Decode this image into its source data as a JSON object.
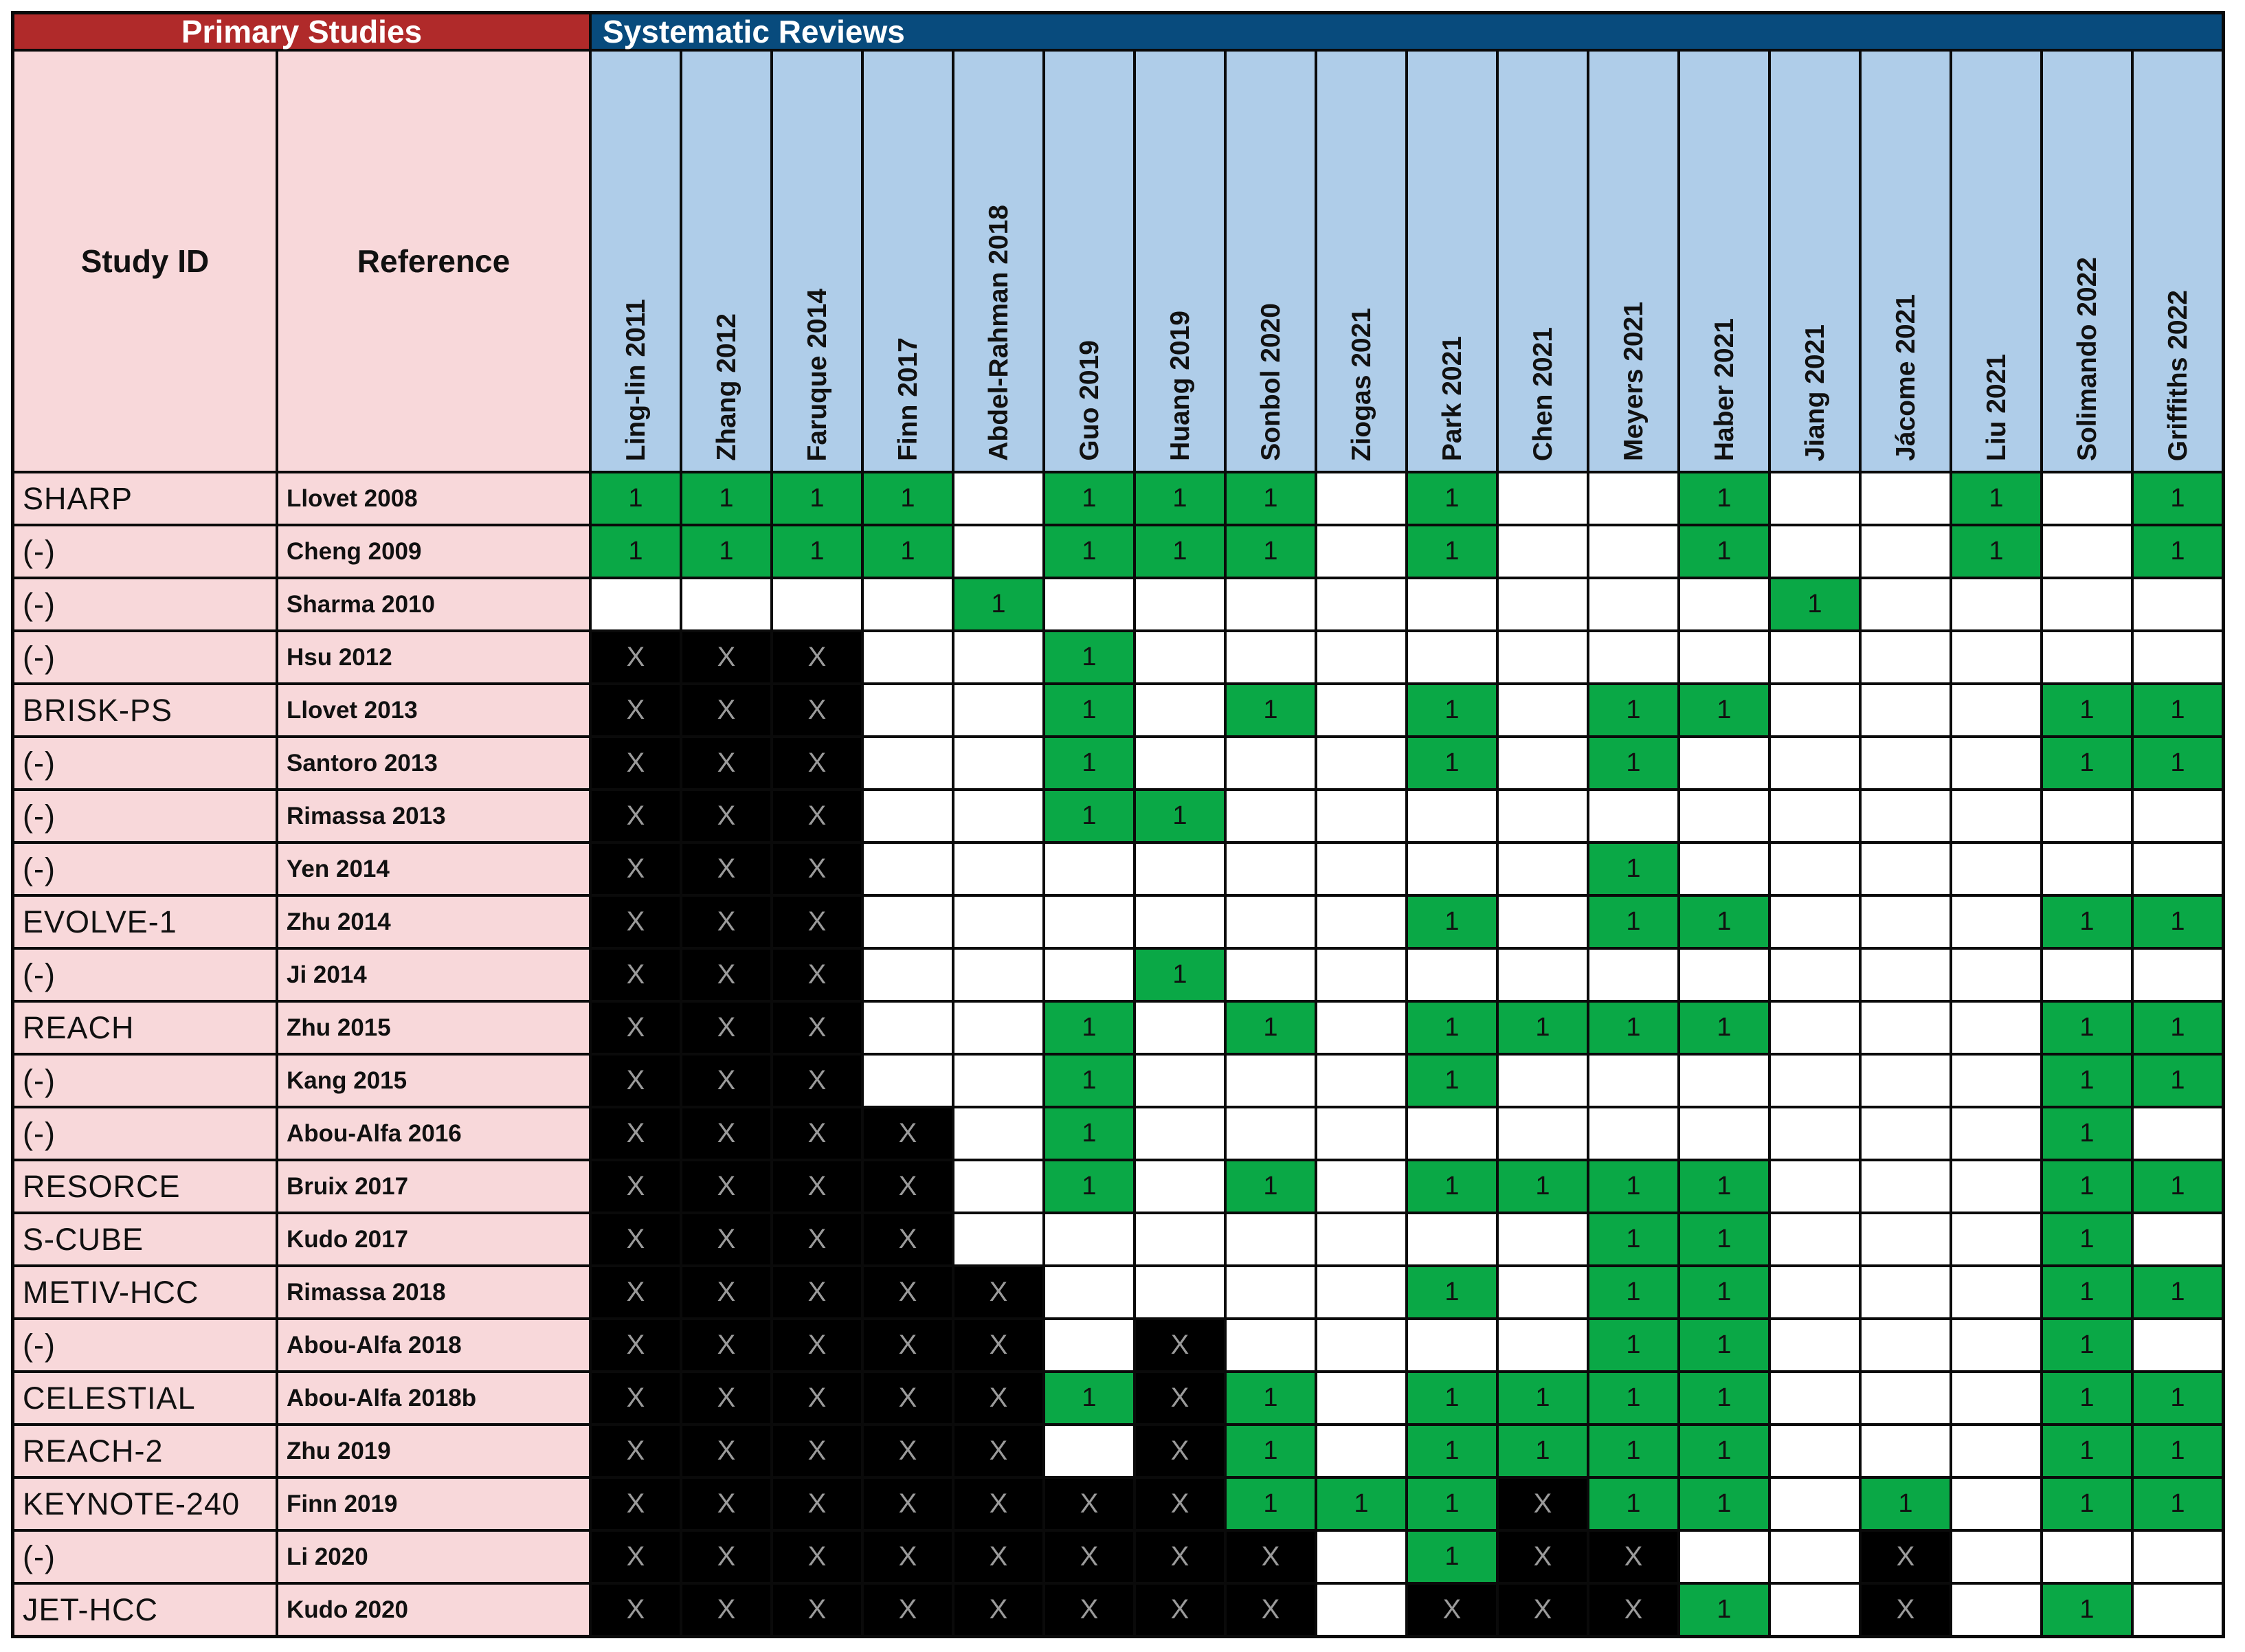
{
  "header": {
    "primary_studies_label": "Primary Studies",
    "systematic_reviews_label": "Systematic Reviews",
    "study_id_label": "Study ID",
    "reference_label": "Reference"
  },
  "reviews": [
    "Ling-lin 2011",
    "Zhang 2012",
    "Faruque 2014",
    "Finn 2017",
    "Abdel-Rahman 2018",
    "Guo 2019",
    "Huang 2019",
    "Sonbol 2020",
    "Ziogas 2021",
    "Park 2021",
    "Chen 2021",
    "Meyers 2021",
    "Haber 2021",
    "Jiang 2021",
    "Jácome 2021",
    "Liu 2021",
    "Solimando 2022",
    "Griffiths 2022"
  ],
  "rows": [
    {
      "study_id": "SHARP",
      "reference": "Llovet 2008",
      "cells": [
        "1",
        "1",
        "1",
        "1",
        "",
        "1",
        "1",
        "1",
        "",
        "1",
        "",
        "",
        "1",
        "",
        "",
        "1",
        "",
        "1"
      ]
    },
    {
      "study_id": "(-)",
      "reference": "Cheng 2009",
      "cells": [
        "1",
        "1",
        "1",
        "1",
        "",
        "1",
        "1",
        "1",
        "",
        "1",
        "",
        "",
        "1",
        "",
        "",
        "1",
        "",
        "1"
      ]
    },
    {
      "study_id": "(-)",
      "reference": "Sharma 2010",
      "cells": [
        "",
        "",
        "",
        "",
        "1",
        "",
        "",
        "",
        "",
        "",
        "",
        "",
        "",
        "1",
        "",
        "",
        "",
        ""
      ]
    },
    {
      "study_id": "(-)",
      "reference": "Hsu 2012",
      "cells": [
        "X",
        "X",
        "X",
        "",
        "",
        "1",
        "",
        "",
        "",
        "",
        "",
        "",
        "",
        "",
        "",
        "",
        "",
        ""
      ]
    },
    {
      "study_id": "BRISK-PS",
      "reference": "Llovet 2013",
      "cells": [
        "X",
        "X",
        "X",
        "",
        "",
        "1",
        "",
        "1",
        "",
        "1",
        "",
        "1",
        "1",
        "",
        "",
        "",
        "1",
        "1"
      ]
    },
    {
      "study_id": "(-)",
      "reference": "Santoro 2013",
      "cells": [
        "X",
        "X",
        "X",
        "",
        "",
        "1",
        "",
        "",
        "",
        "1",
        "",
        "1",
        "",
        "",
        "",
        "",
        "1",
        "1"
      ]
    },
    {
      "study_id": "(-)",
      "reference": "Rimassa 2013",
      "cells": [
        "X",
        "X",
        "X",
        "",
        "",
        "1",
        "1",
        "",
        "",
        "",
        "",
        "",
        "",
        "",
        "",
        "",
        "",
        ""
      ]
    },
    {
      "study_id": "(-)",
      "reference": "Yen 2014",
      "cells": [
        "X",
        "X",
        "X",
        "",
        "",
        "",
        "",
        "",
        "",
        "",
        "",
        "1",
        "",
        "",
        "",
        "",
        "",
        ""
      ]
    },
    {
      "study_id": "EVOLVE-1",
      "reference": "Zhu 2014",
      "cells": [
        "X",
        "X",
        "X",
        "",
        "",
        "",
        "",
        "",
        "",
        "1",
        "",
        "1",
        "1",
        "",
        "",
        "",
        "1",
        "1"
      ]
    },
    {
      "study_id": "(-)",
      "reference": "Ji 2014",
      "cells": [
        "X",
        "X",
        "X",
        "",
        "",
        "",
        "1",
        "",
        "",
        "",
        "",
        "",
        "",
        "",
        "",
        "",
        "",
        ""
      ]
    },
    {
      "study_id": "REACH",
      "reference": "Zhu 2015",
      "cells": [
        "X",
        "X",
        "X",
        "",
        "",
        "1",
        "",
        "1",
        "",
        "1",
        "1",
        "1",
        "1",
        "",
        "",
        "",
        "1",
        "1"
      ]
    },
    {
      "study_id": "(-)",
      "reference": "Kang 2015",
      "cells": [
        "X",
        "X",
        "X",
        "",
        "",
        "1",
        "",
        "",
        "",
        "1",
        "",
        "",
        "",
        "",
        "",
        "",
        "1",
        "1"
      ]
    },
    {
      "study_id": "(-)",
      "reference": "Abou-Alfa 2016",
      "cells": [
        "X",
        "X",
        "X",
        "X",
        "",
        "1",
        "",
        "",
        "",
        "",
        "",
        "",
        "",
        "",
        "",
        "",
        "1",
        ""
      ]
    },
    {
      "study_id": "RESORCE",
      "reference": "Bruix 2017",
      "cells": [
        "X",
        "X",
        "X",
        "X",
        "",
        "1",
        "",
        "1",
        "",
        "1",
        "1",
        "1",
        "1",
        "",
        "",
        "",
        "1",
        "1"
      ]
    },
    {
      "study_id": "S-CUBE",
      "reference": "Kudo 2017",
      "cells": [
        "X",
        "X",
        "X",
        "X",
        "",
        "",
        "",
        "",
        "",
        "",
        "",
        "1",
        "1",
        "",
        "",
        "",
        "1",
        ""
      ]
    },
    {
      "study_id": "METIV-HCC",
      "reference": "Rimassa 2018",
      "cells": [
        "X",
        "X",
        "X",
        "X",
        "X",
        "",
        "",
        "",
        "",
        "1",
        "",
        "1",
        "1",
        "",
        "",
        "",
        "1",
        "1"
      ]
    },
    {
      "study_id": "(-)",
      "reference": "Abou-Alfa 2018",
      "cells": [
        "X",
        "X",
        "X",
        "X",
        "X",
        "",
        "X",
        "",
        "",
        "",
        "",
        "1",
        "1",
        "",
        "",
        "",
        "1",
        ""
      ]
    },
    {
      "study_id": "CELESTIAL",
      "reference": "Abou-Alfa 2018b",
      "cells": [
        "X",
        "X",
        "X",
        "X",
        "X",
        "1",
        "X",
        "1",
        "",
        "1",
        "1",
        "1",
        "1",
        "",
        "",
        "",
        "1",
        "1"
      ]
    },
    {
      "study_id": "REACH-2",
      "reference": "Zhu 2019",
      "cells": [
        "X",
        "X",
        "X",
        "X",
        "X",
        "",
        "X",
        "1",
        "",
        "1",
        "1",
        "1",
        "1",
        "",
        "",
        "",
        "1",
        "1"
      ]
    },
    {
      "study_id": "KEYNOTE-240",
      "reference": "Finn 2019",
      "cells": [
        "X",
        "X",
        "X",
        "X",
        "X",
        "X",
        "X",
        "1",
        "1",
        "1",
        "X",
        "1",
        "1",
        "",
        "1",
        "",
        "1",
        "1"
      ]
    },
    {
      "study_id": "(-)",
      "reference": "Li 2020",
      "cells": [
        "X",
        "X",
        "X",
        "X",
        "X",
        "X",
        "X",
        "X",
        "",
        "1",
        "X",
        "X",
        "",
        "",
        "X",
        "",
        "",
        ""
      ]
    },
    {
      "study_id": "JET-HCC",
      "reference": "Kudo 2020",
      "cells": [
        "X",
        "X",
        "X",
        "X",
        "X",
        "X",
        "X",
        "X",
        "",
        "X",
        "X",
        "X",
        "1",
        "",
        "X",
        "",
        "1",
        ""
      ]
    }
  ],
  "colors": {
    "included_green": "#0AA846",
    "excluded_black": "#000000",
    "primary_band_red": "#B02A2A",
    "reviews_band_blue": "#084B7D",
    "review_header_blue": "#AFCDE9",
    "study_row_pink": "#F8D8DA",
    "x_text_gray": "#9B9B9B"
  }
}
